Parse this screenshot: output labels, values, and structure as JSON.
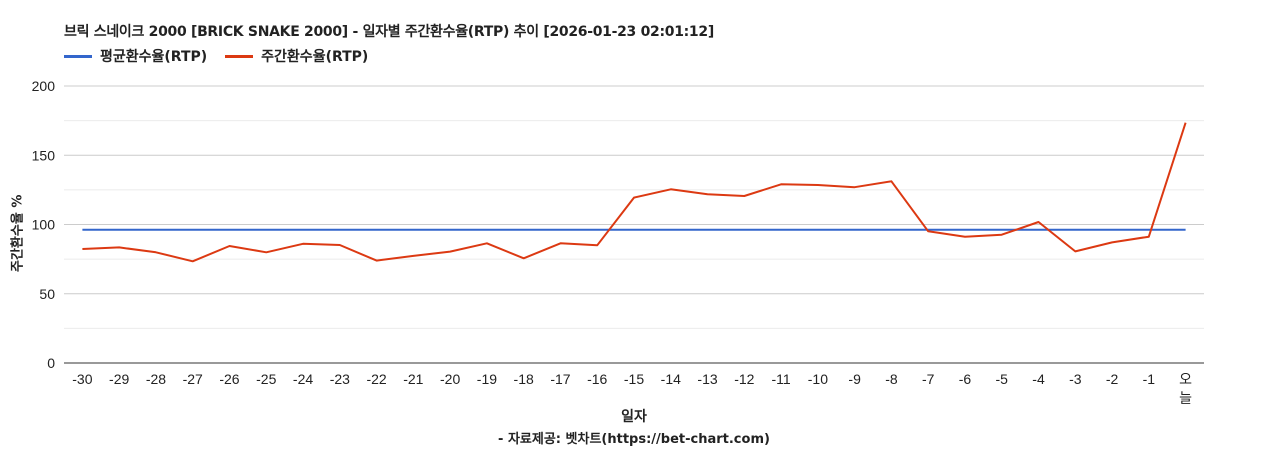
{
  "chart_data": {
    "type": "line",
    "title": "브릭 스네이크 2000 [BRICK SNAKE 2000] - 일자별 주간환수율(RTP) 추이 [2026-01-23 02:01:12]",
    "xlabel": "일자",
    "ylabel": "주간환수율 %",
    "ylim": [
      0,
      200
    ],
    "yticks": [
      0,
      50,
      100,
      150,
      200
    ],
    "minor_gridlines": [
      25,
      75,
      125,
      175
    ],
    "grid": true,
    "legend_position": "top",
    "categories": [
      "-30",
      "-29",
      "-28",
      "-27",
      "-26",
      "-25",
      "-24",
      "-23",
      "-22",
      "-21",
      "-20",
      "-19",
      "-18",
      "-17",
      "-16",
      "-15",
      "-14",
      "-13",
      "-12",
      "-11",
      "-10",
      "-9",
      "-8",
      "-7",
      "-6",
      "-5",
      "-4",
      "-3",
      "-2",
      "-1",
      "오늘"
    ],
    "series": [
      {
        "name": "평균환수율(RTP)",
        "color": "#3366CC",
        "values": [
          96.2,
          96.2,
          96.2,
          96.2,
          96.2,
          96.2,
          96.2,
          96.2,
          96.2,
          96.2,
          96.2,
          96.2,
          96.2,
          96.2,
          96.2,
          96.2,
          96.2,
          96.2,
          96.2,
          96.2,
          96.2,
          96.2,
          96.2,
          96.2,
          96.2,
          96.2,
          96.2,
          96.2,
          96.2,
          96.2,
          96.2
        ]
      },
      {
        "name": "주간환수율(RTP)",
        "color": "#DC3912",
        "values": [
          82.3,
          83.5,
          79.9,
          73.4,
          84.5,
          79.9,
          86.1,
          85.2,
          73.9,
          77.3,
          80.4,
          86.4,
          75.6,
          86.4,
          85.0,
          119.4,
          125.4,
          121.8,
          120.6,
          129.0,
          128.5,
          126.9,
          131.2,
          95.1,
          91.2,
          92.6,
          101.8,
          80.6,
          87.1,
          91.2,
          173.5
        ]
      }
    ],
    "source": "- 자료제공: 벳차트(https://bet-chart.com)"
  },
  "header": {
    "title": "브릭 스네이크 2000 [BRICK SNAKE 2000] - 일자별 주간환수율(RTP) 추이 [2026-01-23 02:01:12]"
  },
  "legend": {
    "items": [
      {
        "label": "평균환수율(RTP)",
        "color": "#3366CC"
      },
      {
        "label": "주간환수율(RTP)",
        "color": "#DC3912"
      }
    ]
  },
  "axes": {
    "x_title": "일자",
    "y_title": "주간환수율 %"
  },
  "footer": {
    "source": "- 자료제공: 벳차트(https://bet-chart.com)"
  }
}
